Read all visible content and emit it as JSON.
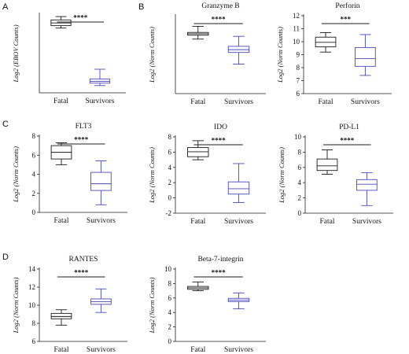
{
  "panel_labels": [
    "A",
    "B",
    "C",
    "D"
  ],
  "colors": {
    "fatal": "#1a1a1a",
    "survivors": "#4a4abf",
    "axis": "#222222"
  },
  "chart_data": [
    {
      "id": "ebov",
      "panel": "A",
      "type": "boxplot",
      "title": "",
      "ylabel": "Log2 (EBOV Counts)",
      "ylim": [
        0,
        13
      ],
      "yticks": [],
      "categories": [
        "Fatal",
        "Survivors"
      ],
      "boxes": [
        {
          "category": "Fatal",
          "min": 10.7,
          "q1": 11.1,
          "median": 11.55,
          "q3": 12.05,
          "max": 12.6
        },
        {
          "category": "Survivors",
          "min": 1.2,
          "q1": 1.6,
          "median": 1.9,
          "q3": 2.3,
          "max": 3.9
        }
      ],
      "significance": "****"
    },
    {
      "id": "granzyme",
      "panel": "B",
      "type": "boxplot",
      "title": "Granzyme B",
      "ylabel": "Log2 (Norm Counts)",
      "ylim": [
        0,
        14
      ],
      "yticks": [],
      "categories": [
        "Fatal",
        "Survivors"
      ],
      "boxes": [
        {
          "category": "Fatal",
          "min": 9.8,
          "q1": 10.5,
          "median": 10.75,
          "q3": 11.0,
          "max": 12.1
        },
        {
          "category": "Survivors",
          "min": 5.3,
          "q1": 7.4,
          "median": 7.9,
          "q3": 8.5,
          "max": 10.3
        }
      ],
      "significance": "****"
    },
    {
      "id": "perforin",
      "panel": "",
      "type": "boxplot",
      "title": "Perforin",
      "ylabel": "Log2 (Norm Counts)",
      "ylim": [
        6,
        12
      ],
      "yticks": [
        "6",
        "7",
        "8",
        "9",
        "10",
        "11",
        "12"
      ],
      "categories": [
        "Fatal",
        "Survivors"
      ],
      "boxes": [
        {
          "category": "Fatal",
          "min": 9.2,
          "q1": 9.6,
          "median": 9.95,
          "q3": 10.35,
          "max": 10.7
        },
        {
          "category": "Survivors",
          "min": 7.4,
          "q1": 8.1,
          "median": 8.7,
          "q3": 9.55,
          "max": 10.55
        }
      ],
      "significance": "***"
    },
    {
      "id": "flt3",
      "panel": "C",
      "type": "boxplot",
      "title": "FLT3",
      "ylabel": "Log2 (Norm Counts)",
      "ylim": [
        0,
        8
      ],
      "yticks": [
        "0",
        "2",
        "4",
        "6",
        "8"
      ],
      "categories": [
        "Fatal",
        "Survivors"
      ],
      "boxes": [
        {
          "category": "Fatal",
          "min": 5.0,
          "q1": 5.6,
          "median": 6.3,
          "q3": 7.0,
          "max": 7.3
        },
        {
          "category": "Survivors",
          "min": 0.8,
          "q1": 2.3,
          "median": 3.0,
          "q3": 4.2,
          "max": 5.4
        }
      ],
      "significance": "****"
    },
    {
      "id": "ido",
      "panel": "",
      "type": "boxplot",
      "title": "IDO",
      "ylabel": "Log2 (Norm Counts)",
      "ylim": [
        -2,
        8
      ],
      "yticks": [
        "-2",
        "0",
        "2",
        "4",
        "6",
        "8"
      ],
      "categories": [
        "Fatal",
        "Survivors"
      ],
      "boxes": [
        {
          "category": "Fatal",
          "min": 5.0,
          "q1": 5.4,
          "median": 6.05,
          "q3": 6.6,
          "max": 7.5
        },
        {
          "category": "Survivors",
          "min": -0.6,
          "q1": 0.5,
          "median": 1.2,
          "q3": 2.1,
          "max": 4.5
        }
      ],
      "significance": "****"
    },
    {
      "id": "pdl1",
      "panel": "",
      "type": "boxplot",
      "title": "PD-L1",
      "ylabel": "Log2 (Norm Counts)",
      "ylim": [
        0,
        10
      ],
      "yticks": [
        "0",
        "2",
        "4",
        "6",
        "8",
        "10"
      ],
      "categories": [
        "Fatal",
        "Survivors"
      ],
      "boxes": [
        {
          "category": "Fatal",
          "min": 5.1,
          "q1": 5.6,
          "median": 6.2,
          "q3": 7.1,
          "max": 8.3
        },
        {
          "category": "Survivors",
          "min": 1.0,
          "q1": 3.0,
          "median": 3.8,
          "q3": 4.4,
          "max": 5.3
        }
      ],
      "significance": "****"
    },
    {
      "id": "rantes",
      "panel": "D",
      "type": "boxplot",
      "title": "RANTES",
      "ylabel": "Log2 (Norm Counts)",
      "ylim": [
        6,
        14
      ],
      "yticks": [
        "6",
        "8",
        "10",
        "12",
        "14"
      ],
      "categories": [
        "Fatal",
        "Survivors"
      ],
      "boxes": [
        {
          "category": "Fatal",
          "min": 7.8,
          "q1": 8.5,
          "median": 8.75,
          "q3": 9.1,
          "max": 9.5
        },
        {
          "category": "Survivors",
          "min": 9.2,
          "q1": 10.1,
          "median": 10.4,
          "q3": 10.7,
          "max": 11.8
        }
      ],
      "significance": "****"
    },
    {
      "id": "beta7",
      "panel": "",
      "type": "boxplot",
      "title": "Beta-7-integrin",
      "ylabel": "Log2 (Norm Counts)",
      "ylim": [
        0,
        10
      ],
      "yticks": [
        "0",
        "2",
        "4",
        "6",
        "8",
        "10"
      ],
      "categories": [
        "Fatal",
        "Survivors"
      ],
      "boxes": [
        {
          "category": "Fatal",
          "min": 7.0,
          "q1": 7.2,
          "median": 7.4,
          "q3": 7.6,
          "max": 8.2
        },
        {
          "category": "Survivors",
          "min": 4.5,
          "q1": 5.5,
          "median": 5.7,
          "q3": 5.95,
          "max": 6.7
        }
      ],
      "significance": "****"
    }
  ]
}
